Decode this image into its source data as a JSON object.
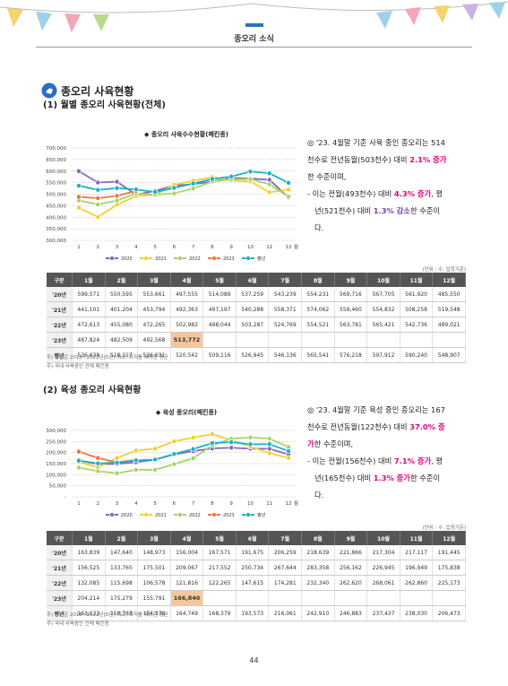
{
  "header": {
    "title": "종오리 소식"
  },
  "section_title": "종오리 사육현황",
  "sections": [
    {
      "title": "(1) 월별 종오리 사육현황(전체)",
      "chart": {
        "type": "line",
        "title": "◆ 종오리 사육수수현황(페킨종)",
        "categories": [
          "1",
          "2",
          "3",
          "4",
          "5",
          "6",
          "7",
          "8",
          "9",
          "10",
          "11",
          "12"
        ],
        "x_unit": "월",
        "ylim": [
          300000,
          700000
        ],
        "yticks": [
          {
            "value": 300000,
            "label": "300,000"
          },
          {
            "value": 350000,
            "label": "350,000"
          },
          {
            "value": 400000,
            "label": "400,000"
          },
          {
            "value": 450000,
            "label": "450,000"
          },
          {
            "value": 500000,
            "label": "500,000"
          },
          {
            "value": 550000,
            "label": "550,000"
          },
          {
            "value": 600000,
            "label": "600,000"
          },
          {
            "value": 650000,
            "label": "650,000"
          },
          {
            "value": 700000,
            "label": "700,000"
          }
        ],
        "grid": true,
        "series": [
          {
            "name": "2020",
            "color": "#8b67be",
            "values": [
              599571,
              550595,
              553661,
              497555,
              514089,
              537259,
              543239,
              554231,
              569716,
              567705,
              561920,
              485550
            ]
          },
          {
            "name": "2021",
            "color": "#f4cf2a",
            "values": [
              441101,
              401204,
              453794,
              492363,
              497197,
              540288,
              558371,
              574062,
              559460,
              554832,
              508258,
              519548
            ]
          },
          {
            "name": "2022",
            "color": "#a7d36a",
            "values": [
              472613,
              455080,
              472265,
              502982,
              498044,
              503287,
              524769,
              554521,
              563781,
              565421,
              542736,
              489021
            ]
          },
          {
            "name": "2023",
            "color": "#e8793a",
            "values": [
              487824,
              482509,
              492568,
              513772
            ]
          },
          {
            "name": "평년",
            "color": "#1bb2c8",
            "values": [
              536638,
              518227,
              526031,
              520542,
              509116,
              526945,
              546136,
              565541,
              576218,
              597912,
              590240,
              548907
            ]
          }
        ]
      },
      "text": [
        [
          {
            "text": "◎ '23. 4월말 기준 사육 중인 종오리는 514천수로 전년동월(503천수) 대비 "
          },
          {
            "text": "2.1% 증가",
            "color": "#e4007f"
          },
          {
            "text": "한 수준이며,"
          }
        ],
        [
          {
            "text": "- 이는 전월(493천수) 대비 "
          },
          {
            "text": "4.3% 증가",
            "color": "#e4007f"
          },
          {
            "text": ", 평년(521천수) 대비 "
          },
          {
            "text": "1.3% 감소",
            "color": "#7b3fb0"
          },
          {
            "text": "한 수준이다."
          }
        ]
      ],
      "table": {
        "unit": "(단위 : 수, 입정기준)",
        "columns": [
          "구분",
          "1월",
          "2월",
          "3월",
          "4월",
          "5월",
          "6월",
          "7월",
          "8월",
          "9월",
          "10월",
          "11월",
          "12월"
        ],
        "rows": [
          [
            "'20년",
            "599,571",
            "550,595",
            "553,661",
            "497,555",
            "514,089",
            "537,259",
            "543,239",
            "554,231",
            "569,716",
            "567,705",
            "561,920",
            "485,550"
          ],
          [
            "'21년",
            "441,101",
            "401,204",
            "453,794",
            "492,363",
            "497,197",
            "540,288",
            "558,371",
            "574,062",
            "559,460",
            "554,832",
            "508,258",
            "519,548"
          ],
          [
            "'22년",
            "472,613",
            "455,080",
            "472,265",
            "502,982",
            "498,044",
            "503,287",
            "524,769",
            "554,521",
            "563,781",
            "565,421",
            "542,736",
            "489,021"
          ],
          [
            "'23년",
            "487,824",
            "482,509",
            "492,568",
            "513,772"
          ],
          [
            "평년",
            "536,638",
            "518,227",
            "526,031",
            "520,542",
            "509,116",
            "526,945",
            "546,136",
            "565,541",
            "576,218",
            "597,912",
            "590,240",
            "548,907"
          ]
        ]
      },
      "notes": [
        "주) 평년은 2018~2022년(5년) 최고, 최저를 제외한 평균",
        "주) 국내 사육중인 전체 페킨종"
      ]
    },
    {
      "title": "(2) 육성 종오리 사육현황",
      "chart": {
        "type": "line",
        "title": "◆ 육성 종오리(페킨종)",
        "categories": [
          "1",
          "2",
          "3",
          "4",
          "5",
          "6",
          "7",
          "8",
          "9",
          "10",
          "11",
          "12"
        ],
        "x_unit": "월",
        "ylim": [
          0,
          300000
        ],
        "yticks": [
          {
            "value": 0,
            "label": "-"
          },
          {
            "value": 50000,
            "label": "50,000"
          },
          {
            "value": 100000,
            "label": "100,000"
          },
          {
            "value": 150000,
            "label": "150,000"
          },
          {
            "value": 200000,
            "label": "200,000"
          },
          {
            "value": 250000,
            "label": "250,000"
          },
          {
            "value": 300000,
            "label": "300,000"
          }
        ],
        "grid": true,
        "series": [
          {
            "name": "2020",
            "color": "#8b67be",
            "values": [
              163839,
              147640,
              148973,
              156004,
              167571,
              191675,
              206259,
              218639,
              221866,
              217304,
              217117,
              191445
            ]
          },
          {
            "name": "2021",
            "color": "#f4cf2a",
            "values": [
              156525,
              133765,
              175501,
              209067,
              217552,
              250734,
              267644,
              283358,
              256162,
              226945,
              196949,
              175838
            ]
          },
          {
            "name": "2022",
            "color": "#a7d36a",
            "values": [
              132085,
              115698,
              106578,
              121816,
              122265,
              147615,
              174281,
              232340,
              262620,
              268061,
              262860,
              225173
            ]
          },
          {
            "name": "2023",
            "color": "#e8793a",
            "values": [
              204214,
              175279,
              155791,
              166840
            ]
          },
          {
            "name": "평년",
            "color": "#1bb2c8",
            "values": [
              163633,
              150783,
              154378,
              164749,
              168379,
              193573,
              216061,
              242910,
              246883,
              237437,
              238030,
              206473
            ]
          }
        ]
      },
      "text": [
        [
          {
            "text": "◎ '23. 4월말 기준 육성 중인 종오리는 167천수로 전년동월(122천수) 대비 "
          },
          {
            "text": "37.0% 증가",
            "color": "#e4007f"
          },
          {
            "text": "한 수준이며,"
          }
        ],
        [
          {
            "text": "- 이는 전월(156천수) 대비 "
          },
          {
            "text": "7.1% 증가",
            "color": "#e4007f"
          },
          {
            "text": ", 평년(165천수) 대비 "
          },
          {
            "text": "1.3% 증가",
            "color": "#e4007f"
          },
          {
            "text": "한 수준이다."
          }
        ]
      ],
      "table": {
        "unit": "(단위 : 수, 입정기준)",
        "columns": [
          "구분",
          "1월",
          "2월",
          "3월",
          "4월",
          "5월",
          "6월",
          "7월",
          "8월",
          "9월",
          "10월",
          "11월",
          "12월"
        ],
        "rows": [
          [
            "'20년",
            "163,839",
            "147,640",
            "148,973",
            "156,004",
            "167,571",
            "191,675",
            "206,259",
            "218,639",
            "221,866",
            "217,304",
            "217,117",
            "191,445"
          ],
          [
            "'21년",
            "156,525",
            "133,765",
            "175,501",
            "209,067",
            "217,552",
            "250,734",
            "267,644",
            "283,358",
            "256,162",
            "226,945",
            "196,949",
            "175,838"
          ],
          [
            "'22년",
            "132,085",
            "115,698",
            "106,578",
            "121,816",
            "122,265",
            "147,615",
            "174,281",
            "232,340",
            "262,620",
            "268,061",
            "262,860",
            "225,173"
          ],
          [
            "'23년",
            "204,214",
            "175,279",
            "155,791",
            "166,840"
          ],
          [
            "평년",
            "163,633",
            "150,783",
            "154,378",
            "164,749",
            "168,379",
            "193,573",
            "216,061",
            "242,910",
            "246,883",
            "237,437",
            "238,030",
            "206,473"
          ]
        ]
      },
      "notes": [
        "주) 평년은 2018~2022년(5년) 최고, 최저를 제외한 평균",
        "주) 국내 사육중인 전체 페킨종"
      ]
    }
  ],
  "page_number": "44"
}
